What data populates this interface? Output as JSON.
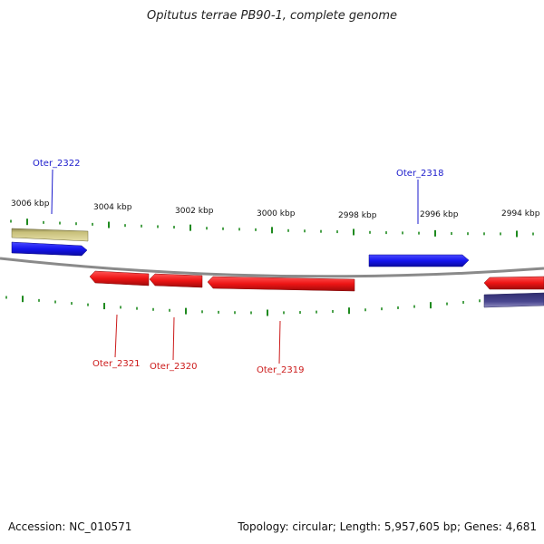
{
  "title": "Opitutus terrae PB90-1, complete genome",
  "footer": {
    "accession": "Accession: NC_010571",
    "topology": "Topology: circular; Length: 5,957,605 bp; Genes: 4,681"
  },
  "colors": {
    "forward_gene": "#1515ee",
    "reverse_gene": "#ee1515",
    "other_feature_tan": "#c8c07a",
    "other_feature_purple": "#4a4790",
    "backbone": "#8a8a8a",
    "ticks": "#1f8a1f",
    "forward_label": "#1a1acc",
    "reverse_label": "#cc1a1a"
  },
  "kbp_labels": [
    "3006 kbp",
    "3004 kbp",
    "3002 kbp",
    "3000 kbp",
    "2998 kbp",
    "2996 kbp",
    "2994 kbp"
  ],
  "genes": [
    {
      "locus": "Oter_2322",
      "strand": "forward"
    },
    {
      "locus": "Oter_2318",
      "strand": "forward"
    },
    {
      "locus": "Oter_2321",
      "strand": "reverse"
    },
    {
      "locus": "Oter_2320",
      "strand": "reverse"
    },
    {
      "locus": "Oter_2319",
      "strand": "reverse"
    }
  ]
}
